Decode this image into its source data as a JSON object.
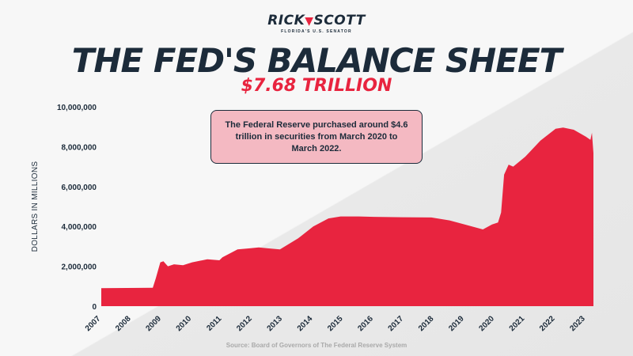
{
  "logo": {
    "name_part1": "RICK",
    "name_part2": "SCOTT",
    "tagline": "FLORIDA'S U.S. SENATOR"
  },
  "title": "THE FED'S BALANCE SHEET",
  "subtitle": "$7.68 TRILLION",
  "annotation": "The Federal Reserve purchased around $4.6 trillion in securities from March 2020 to March 2022.",
  "source": "Source: Board of Governors of The Federal Reserve System",
  "colors": {
    "navy": "#1c2b3a",
    "accent": "#e8243f",
    "annotation_bg": "#f4b9c2"
  },
  "chart_data": {
    "type": "area",
    "ylabel": "DOLLARS IN MILLIONS",
    "ylim": [
      0,
      10000000
    ],
    "xlim": [
      2007,
      2023.25
    ],
    "yticks": [
      {
        "value": 0,
        "label": "0"
      },
      {
        "value": 2000000,
        "label": "2,000,000"
      },
      {
        "value": 4000000,
        "label": "4,000,000"
      },
      {
        "value": 6000000,
        "label": "6,000,000"
      },
      {
        "value": 8000000,
        "label": "8,000,000"
      },
      {
        "value": 10000000,
        "label": "10,000,000"
      }
    ],
    "xticks": [
      "2007",
      "2008",
      "2009",
      "2010",
      "2011",
      "2012",
      "2013",
      "2014",
      "2015",
      "2016",
      "2017",
      "2018",
      "2019",
      "2020",
      "2021",
      "2022",
      "2023"
    ],
    "series": [
      {
        "color": "#e8243f",
        "x": [
          2007.0,
          2008.7,
          2008.8,
          2008.95,
          2009.05,
          2009.2,
          2009.4,
          2009.7,
          2010.0,
          2010.5,
          2010.9,
          2011.0,
          2011.5,
          2011.9,
          2012.2,
          2012.5,
          2012.9,
          2013.5,
          2014.0,
          2014.5,
          2014.9,
          2015.5,
          2016.0,
          2017.0,
          2017.9,
          2018.5,
          2019.0,
          2019.6,
          2019.9,
          2020.1,
          2020.2,
          2020.3,
          2020.45,
          2020.6,
          2021.0,
          2021.5,
          2022.0,
          2022.25,
          2022.6,
          2023.0,
          2023.15,
          2023.2,
          2023.25
        ],
        "y": [
          900000,
          920000,
          1400000,
          2200000,
          2250000,
          2000000,
          2100000,
          2050000,
          2200000,
          2350000,
          2300000,
          2450000,
          2850000,
          2900000,
          2950000,
          2900000,
          2850000,
          3400000,
          4000000,
          4400000,
          4500000,
          4500000,
          4480000,
          4460000,
          4450000,
          4300000,
          4100000,
          3850000,
          4100000,
          4200000,
          4700000,
          6600000,
          7100000,
          7000000,
          7500000,
          8300000,
          8900000,
          8960000,
          8850000,
          8500000,
          8340000,
          8700000,
          7680000
        ]
      }
    ]
  }
}
